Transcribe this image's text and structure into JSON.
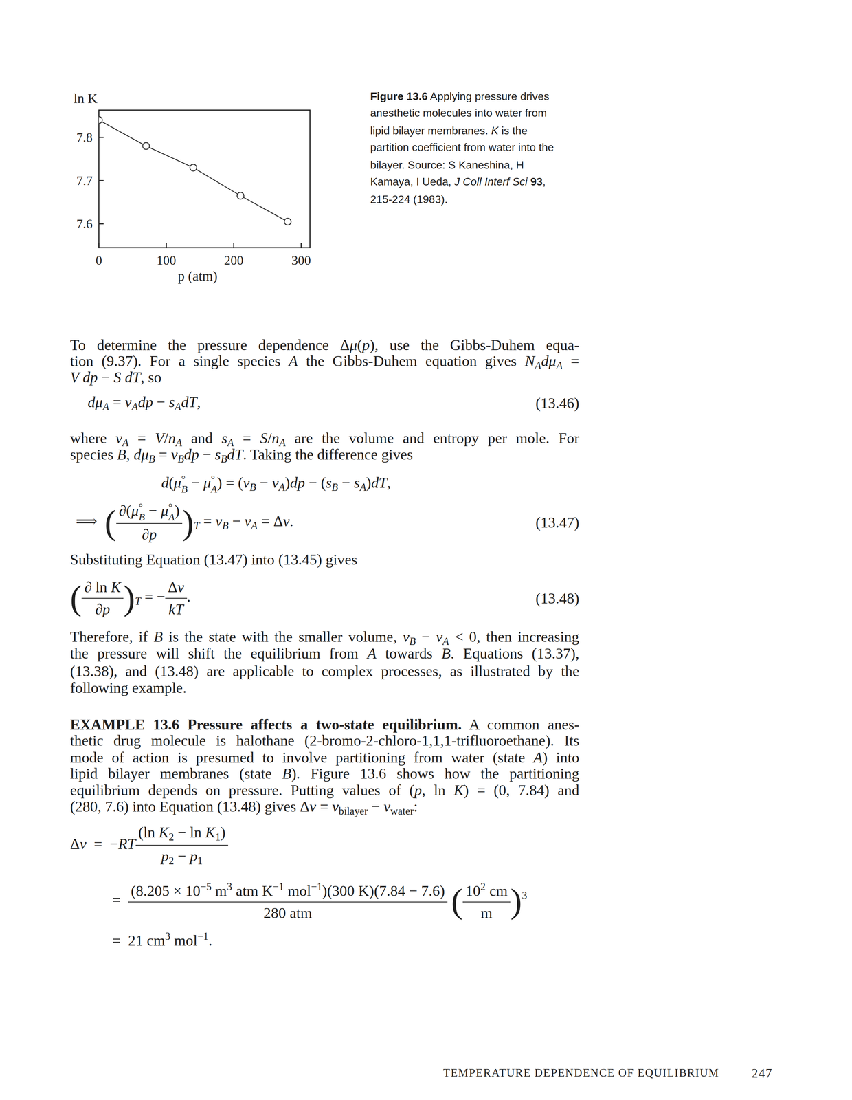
{
  "chart_data": {
    "type": "line",
    "xlabel": "p (atm)",
    "ylabel": "ln K",
    "x": [
      0,
      70,
      140,
      210,
      280
    ],
    "values": [
      7.84,
      7.78,
      7.73,
      7.665,
      7.605
    ],
    "color": "#333333",
    "marker": "circle-open",
    "line_style": "solid",
    "xlim": [
      0,
      313
    ],
    "xticks": [
      0,
      100,
      200,
      300
    ],
    "ylim": [
      7.545,
      7.863
    ],
    "yticks": [
      7.8,
      7.7,
      7.6
    ]
  },
  "caption": [
    [
      {
        "b": "Figure 13.6"
      },
      "  Applying pressure drives"
    ],
    [
      "anesthetic molecules into water from"
    ],
    [
      "lipid bilayer membranes. ",
      {
        "i": "K"
      },
      " is the"
    ],
    [
      "partition coefficient from water into the"
    ],
    [
      "bilayer. Source: S Kaneshina, H"
    ],
    [
      "Kamaya, I Ueda, ",
      {
        "i": "J Coll Interf Sci"
      },
      " ",
      {
        "b": "93"
      },
      ","
    ],
    [
      "215-224 (1983)."
    ]
  ],
  "lines": [
    {
      "runs": [
        "To determine the pressure dependence Δ",
        {
          "i": "μ"
        },
        "(",
        {
          "i": "p"
        },
        "), use the Gibbs-Duhem equa-"
      ]
    },
    {
      "runs": [
        "tion (9.37). For a single species ",
        {
          "i": "A"
        },
        " the Gibbs-Duhem equation gives ",
        {
          "i": "N"
        },
        {
          "sub": "A"
        },
        {
          "i": "dμ"
        },
        {
          "sub": "A"
        },
        " ="
      ]
    },
    {
      "runs": [
        {
          "i": "V dp"
        },
        " − ",
        {
          "i": "S dT"
        },
        ", so"
      ]
    },
    {
      "runs": [
        {
          "i": "dμ"
        },
        {
          "sub": "A"
        },
        " = ",
        {
          "i": "v"
        },
        {
          "sub": "A"
        },
        {
          "i": "dp"
        },
        " − ",
        {
          "i": "s"
        },
        {
          "sub": "A"
        },
        {
          "i": "dT"
        },
        ","
      ],
      "tag": "(13.46)"
    },
    {
      "runs": [
        "where ",
        {
          "i": "v"
        },
        {
          "sub": "A"
        },
        " = ",
        {
          "i": "V"
        },
        "/",
        {
          "i": "n"
        },
        {
          "sub": "A"
        },
        " and ",
        {
          "i": "s"
        },
        {
          "sub": "A"
        },
        " = ",
        {
          "i": "S"
        },
        "/",
        {
          "i": "n"
        },
        {
          "sub": "A"
        },
        " are the volume and entropy per mole. For"
      ]
    },
    {
      "runs": [
        "species ",
        {
          "i": "B"
        },
        ", ",
        {
          "i": "dμ"
        },
        {
          "sub": "B"
        },
        " = ",
        {
          "i": "v"
        },
        {
          "sub": "B"
        },
        {
          "i": "dp"
        },
        " − ",
        {
          "i": "s"
        },
        {
          "sub": "B"
        },
        {
          "i": "dT"
        },
        ". Taking the difference gives"
      ]
    },
    {
      "runs": [
        {
          "i": "d"
        },
        "(",
        {
          "i": "μ"
        },
        {
          "ss": [
            "°",
            "B"
          ]
        },
        " − ",
        {
          "i": "μ"
        },
        {
          "ss": [
            "°",
            "A"
          ]
        },
        ") = (",
        {
          "i": "v"
        },
        {
          "sub": "B"
        },
        " − ",
        {
          "i": "v"
        },
        {
          "sub": "A"
        },
        ")",
        {
          "i": "dp"
        },
        " − (",
        {
          "i": "s"
        },
        {
          "sub": "B"
        },
        " − ",
        {
          "i": "s"
        },
        {
          "sub": "A"
        },
        ")",
        {
          "i": "dT"
        },
        ","
      ]
    },
    {
      "runs": [
        "⟹  ",
        {
          "big": "("
        },
        {
          "frac": [
            [
              {
                "i": "∂"
              },
              "(",
              {
                "i": "μ"
              },
              {
                "ss": [
                  "°",
                  "B"
                ]
              },
              " − ",
              {
                "i": "μ"
              },
              {
                "ss": [
                  "°",
                  "A"
                ]
              },
              ")"
            ],
            [
              {
                "i": "∂p"
              }
            ]
          ]
        },
        {
          "big": ")"
        },
        {
          "sub": "T"
        },
        " = ",
        {
          "i": "v"
        },
        {
          "sub": "B"
        },
        " − ",
        {
          "i": "v"
        },
        {
          "sub": "A"
        },
        " = Δ",
        {
          "i": "v"
        },
        "."
      ],
      "tag": "(13.47)"
    },
    {
      "runs": [
        "Substituting Equation (13.47) into (13.45) gives"
      ]
    },
    {
      "runs": [
        {
          "big": "("
        },
        {
          "frac": [
            [
              {
                "i": "∂"
              },
              " ln ",
              {
                "i": "K"
              }
            ],
            [
              {
                "i": "∂p"
              }
            ]
          ]
        },
        {
          "big": ")"
        },
        {
          "sub": "T"
        },
        " = −",
        {
          "frac": [
            [
              "Δ",
              {
                "i": "v"
              }
            ],
            [
              {
                "i": "kT"
              }
            ]
          ]
        },
        "."
      ],
      "tag": "(13.48)"
    },
    {
      "runs": [
        "Therefore, if ",
        {
          "i": "B"
        },
        " is the state with the smaller volume, ",
        {
          "i": "v"
        },
        {
          "sub": "B"
        },
        " − ",
        {
          "i": "v"
        },
        {
          "sub": "A"
        },
        " < 0, then increasing"
      ]
    },
    {
      "runs": [
        "the pressure will shift the equilibrium from ",
        {
          "i": "A"
        },
        " towards ",
        {
          "i": "B"
        },
        ". Equations (13.37),"
      ]
    },
    {
      "runs": [
        "(13.38), and (13.48) are applicable to complex processes, as illustrated by the"
      ]
    },
    {
      "runs": [
        "following example."
      ]
    },
    {
      "runs": [
        {
          "b": "EXAMPLE 13.6 Pressure affects a two-state equilibrium."
        },
        "   A common anes-"
      ]
    },
    {
      "runs": [
        "thetic drug molecule is halothane (2-bromo-2-chloro-1,1,1-trifluoroethane). Its"
      ]
    },
    {
      "runs": [
        "mode of action is presumed to involve partitioning from water (state ",
        {
          "i": "A"
        },
        ") into"
      ]
    },
    {
      "runs": [
        "lipid bilayer membranes (state ",
        {
          "i": "B"
        },
        "). Figure 13.6 shows how the partitioning"
      ]
    },
    {
      "runs": [
        "equilibrium depends on pressure. Putting values of (",
        {
          "i": "p"
        },
        ", ln ",
        {
          "i": "K"
        },
        ") = (0, 7.84) and"
      ]
    },
    {
      "runs": [
        "(280, 7.6) into Equation (13.48) gives Δ",
        {
          "i": "v"
        },
        " = ",
        {
          "i": "v"
        },
        {
          "sub": "bilayer"
        },
        " − ",
        {
          "i": "v"
        },
        {
          "sub": "water"
        },
        ":"
      ]
    },
    {
      "runs": [
        "Δ",
        {
          "i": "v"
        },
        "  =  −",
        {
          "i": "RT"
        },
        {
          "frac": [
            [
              "(ln ",
              {
                "i": "K"
              },
              {
                "sub": "2"
              },
              " − ln ",
              {
                "i": "K"
              },
              {
                "sub": "1"
              },
              ")"
            ],
            [
              {
                "i": "p"
              },
              {
                "sub": "2"
              },
              " − ",
              {
                "i": "p"
              },
              {
                "sub": "1"
              }
            ]
          ]
        }
      ]
    },
    {
      "runs": [
        "=  ",
        {
          "frac": [
            [
              "(8.205 × 10",
              {
                "sup": "−5"
              },
              " m",
              {
                "sup": "3"
              },
              " atm K",
              {
                "sup": "−1"
              },
              " mol",
              {
                "sup": "−1"
              },
              ")(300 K)(7.84 − 7.6)"
            ],
            [
              "280 atm"
            ]
          ]
        },
        " ",
        {
          "big": "("
        },
        {
          "frac": [
            [
              "10",
              {
                "sup": "2"
              },
              " cm"
            ],
            [
              "m"
            ]
          ]
        },
        {
          "big": ")"
        },
        {
          "sup": "3"
        }
      ]
    },
    {
      "runs": [
        "=  21 cm",
        {
          "sup": "3"
        },
        " mol",
        {
          "sup": "−1"
        },
        "."
      ]
    }
  ],
  "running_head": "TEMPERATURE DEPENDENCE OF EQUILIBRIUM",
  "page_number": "247"
}
